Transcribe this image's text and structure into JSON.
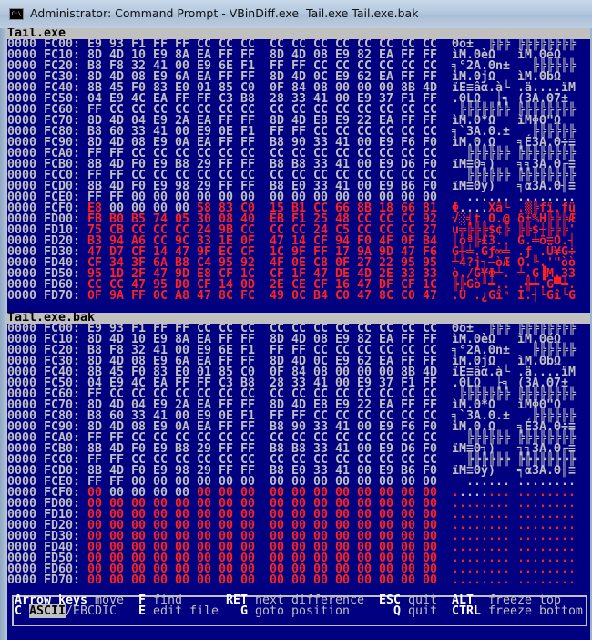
{
  "window": {
    "title": "Administrator: Command Prompt - VBinDiff.exe  Tail.exe Tail.exe.bak",
    "icon": "cmd-icon"
  },
  "colors": {
    "background": "#000080",
    "text": "#c0c0c0",
    "diff": "#ff2020",
    "header": "#c0c0c0"
  },
  "panes": [
    {
      "file": "Tail.exe",
      "rows": [
        {
          "addr": "0000 FC00:",
          "hex": "E9 93 F1 FF FF CC CC CC CC CC CC CC CC CC CC CC",
          "ascii": "Θô±  ╠╠╠╠╠╠╠╠╠╠╠"
        },
        {
          "addr": "0000 FC10:",
          "hex": "8D 4D 10 E9 8A EA FF FF 8D 4D 08 E9 82 EA FF FF",
          "ascii": "ìM.ΘèΩ  ìM.ΘéΩ  "
        },
        {
          "addr": "0000 FC20:",
          "hex": "B8 F8 32 41 00 E9 6E F1 FF FF CC CC CC CC CC CC",
          "ascii": "╕°2A.Θn±  ╠╠╠╠╠╠"
        },
        {
          "addr": "0000 FC30:",
          "hex": "8D 4D 08 E9 6A EA FF FF 8D 4D 0C E9 62 EA FF FF",
          "ascii": "ìM.ΘjΩ  ìM.ΘbΩ  "
        },
        {
          "addr": "0000 FC40:",
          "hex": "8B 45 F0 83 E0 01 85 C0 0F 84 08 00 00 00 8B 4D",
          "ascii": "ïE≡âα.à└.ä....ïM"
        },
        {
          "addr": "0000 FC50:",
          "hex": "04 E9 4C EA FF FF C3 B8 28 33 41 00 E9 37 F1 FF",
          "ascii": ".ΘLΩ  ├╕(3A.Θ7± "
        },
        {
          "addr": "0000 FC60:",
          "hex": "FF CC CC CC CC CC CC CC CC CC CC CC CC CC CC CC",
          "ascii": " ╠╠╠╠╠╠╠╠╠╠╠╠╠╠╠"
        },
        {
          "addr": "0000 FC70:",
          "hex": "8D 4D 04 E9 2A EA FF FF 8D 4D E8 E9 22 EA FF FF",
          "ascii": "ìM.Θ*Ω  ìMΦΘ\"Ω  "
        },
        {
          "addr": "0000 FC80:",
          "hex": "B8 60 33 41 00 E9 0E F1 FF FF CC CC CC CC CC CC",
          "ascii": "╕`3A.Θ.±  ╠╠╠╠╠╠"
        },
        {
          "addr": "0000 FC90:",
          "hex": "8D 4D 08 E9 0A EA FF FF B8 90 33 41 00 E9 F6 F0",
          "ascii": "ìM.Θ.Ω  ╕É3A.Θ÷≡"
        },
        {
          "addr": "0000 FCA0:",
          "hex": "FF FF CC CC CC CC CC CC CC CC CC CC CC CC CC CC",
          "ascii": "  ╠╠╠╠╠╠╠╠╠╠╠╠╠╠"
        },
        {
          "addr": "0000 FCB0:",
          "hex": "8B 4D F0 E9 B8 29 FF FF B8 B8 33 41 00 E9 D6 F0",
          "ascii": "ïM≡Θ╕)  ╕╕3A.Θ╓≡"
        },
        {
          "addr": "0000 FCC0:",
          "hex": "FF FF CC CC CC CC CC CC CC CC CC CC CC CC CC CC",
          "ascii": "  ╠╠╠╠╠╠╠╠╠╠╠╠╠╠"
        },
        {
          "addr": "0000 FCD0:",
          "hex": "8B 4D F0 E9 98 29 FF FF B8 E0 33 41 00 E9 B6 F0",
          "ascii": "ïM≡Θÿ)  ╕α3A.Θ╢≡"
        },
        {
          "addr": "0000 FCE0:",
          "hex": "FF FF 00 00 00 00 00 00 00 00 00 00 00 00 00 00",
          "ascii": "  .............."
        },
        {
          "addr": "0000 FCF0:",
          "hex": "E8 00 00 00 00 58 83 C0 15 B1 CC 66 8B 18 66 81",
          "ascii": "Φ....Xâ└.▒╠fï.fü"
        },
        {
          "addr": "0000 FD00:",
          "hex": "FB B0 B5 74 05 30 08 40 EB F1 25 48 CC CC CC 92",
          "ascii": "√░╡t.0.@δ±%H╠╠╠Æ"
        },
        {
          "addr": "0000 FD10:",
          "hex": "75 CB CC CC CC 24 9B CC CC CC 24 C5 CC CC CC 27",
          "ascii": "u╦╠╠╠$¢╠╠╠$┼╠╠╠'"
        },
        {
          "addr": "0000 FD20:",
          "hex": "B3 94 A6 CC 9C 33 1E 0F 47 14 CF 94 F0 4F 0F B4",
          "ascii": "│öª╠£3..G.╧ö≡O.┤"
        },
        {
          "addr": "0000 FD30:",
          "hex": "47 D7 CF 14 47 9F EC CF 1C 9F FF 17 9A 9D 47 F6",
          "ascii": "G╫╧.Gƒ∞╧.ƒ .Ü¥G÷"
        },
        {
          "addr": "0000 FD40:",
          "hex": "CF 34 3F 6A B8 C4 95 92 4F 0E C8 0F 27 22 95 95",
          "ascii": "╧4?j╕─òÆO.╚.'\"òò"
        },
        {
          "addr": "0000 FD50:",
          "hex": "95 1D 2F 47 9D E8 CF 1C CF 1F 47 DE 4D 2E 33 33",
          "ascii": "ò./G¥Φ╧.╧.G▐M.33"
        },
        {
          "addr": "0000 FD60:",
          "hex": "CC CC 47 95 D0 CF 14 0D 2E CE CF 16 47 DF CF 1C",
          "ascii": "╠╠Gò╨╧...╬╧.G▀╧."
        },
        {
          "addr": "0000 FD70:",
          "hex": "0F 9A FF 0C A8 47 8C FC 49 0C B4 C0 47 8C C0 47",
          "ascii": ".Ü .¿GîⁿI.┤└Gî└G"
        }
      ]
    },
    {
      "file": "Tail.exe.bak",
      "rows": [
        {
          "addr": "0000 FC00:",
          "hex": "E9 93 F1 FF FF CC CC CC CC CC CC CC CC CC CC CC",
          "ascii": "Θô±  ╠╠╠╠╠╠╠╠╠╠╠"
        },
        {
          "addr": "0000 FC10:",
          "hex": "8D 4D 10 E9 8A EA FF FF 8D 4D 08 E9 82 EA FF FF",
          "ascii": "ìM.ΘèΩ  ìM.ΘéΩ  "
        },
        {
          "addr": "0000 FC20:",
          "hex": "B8 F8 32 41 00 E9 6E F1 FF FF CC CC CC CC CC CC",
          "ascii": "╕°2A.Θn±  ╠╠╠╠╠╠"
        },
        {
          "addr": "0000 FC30:",
          "hex": "8D 4D 08 E9 6A EA FF FF 8D 4D 0C E9 62 EA FF FF",
          "ascii": "ìM.ΘjΩ  ìM.ΘbΩ  "
        },
        {
          "addr": "0000 FC40:",
          "hex": "8B 45 F0 83 E0 01 85 C0 0F 84 08 00 00 00 8B 4D",
          "ascii": "ïE≡âα.à└.ä....ïM"
        },
        {
          "addr": "0000 FC50:",
          "hex": "04 E9 4C EA FF FF C3 B8 28 33 41 00 E9 37 F1 FF",
          "ascii": ".ΘLΩ  ├╕(3A.Θ7± "
        },
        {
          "addr": "0000 FC60:",
          "hex": "FF CC CC CC CC CC CC CC CC CC CC CC CC CC CC CC",
          "ascii": " ╠╠╠╠╠╠╠╠╠╠╠╠╠╠╠"
        },
        {
          "addr": "0000 FC70:",
          "hex": "8D 4D 04 E9 2A EA FF FF 8D 4D E8 E9 22 EA FF FF",
          "ascii": "ìM.Θ*Ω  ìMΦΘ\"Ω  "
        },
        {
          "addr": "0000 FC80:",
          "hex": "B8 60 33 41 00 E9 0E F1 FF FF CC CC CC CC CC CC",
          "ascii": "╕`3A.Θ.±  ╠╠╠╠╠╠"
        },
        {
          "addr": "0000 FC90:",
          "hex": "8D 4D 08 E9 0A EA FF FF B8 90 33 41 00 E9 F6 F0",
          "ascii": "ìM.Θ.Ω  ╕É3A.Θ÷≡"
        },
        {
          "addr": "0000 FCA0:",
          "hex": "FF FF CC CC CC CC CC CC CC CC CC CC CC CC CC CC",
          "ascii": "  ╠╠╠╠╠╠╠╠╠╠╠╠╠╠"
        },
        {
          "addr": "0000 FCB0:",
          "hex": "8B 4D F0 E9 B8 29 FF FF B8 B8 33 41 00 E9 D6 F0",
          "ascii": "ïM≡Θ╕)  ╕╕3A.Θ╓≡"
        },
        {
          "addr": "0000 FCC0:",
          "hex": "FF FF CC CC CC CC CC CC CC CC CC CC CC CC CC CC",
          "ascii": "  ╠╠╠╠╠╠╠╠╠╠╠╠╠╠"
        },
        {
          "addr": "0000 FCD0:",
          "hex": "8B 4D F0 E9 98 29 FF FF B8 E0 33 41 00 E9 B6 F0",
          "ascii": "ïM≡Θÿ)  ╕α3A.Θ╢≡"
        },
        {
          "addr": "0000 FCE0:",
          "hex": "FF FF 00 00 00 00 00 00 00 00 00 00 00 00 00 00",
          "ascii": "  .............."
        },
        {
          "addr": "0000 FCF0:",
          "hex": "00 00 00 00 00 00 00 00 00 00 00 00 00 00 00 00",
          "ascii": "................"
        },
        {
          "addr": "0000 FD00:",
          "hex": "00 00 00 00 00 00 00 00 00 00 00 00 00 00 00 00",
          "ascii": "................"
        },
        {
          "addr": "0000 FD10:",
          "hex": "00 00 00 00 00 00 00 00 00 00 00 00 00 00 00 00",
          "ascii": "................"
        },
        {
          "addr": "0000 FD20:",
          "hex": "00 00 00 00 00 00 00 00 00 00 00 00 00 00 00 00",
          "ascii": "................"
        },
        {
          "addr": "0000 FD30:",
          "hex": "00 00 00 00 00 00 00 00 00 00 00 00 00 00 00 00",
          "ascii": "................"
        },
        {
          "addr": "0000 FD40:",
          "hex": "00 00 00 00 00 00 00 00 00 00 00 00 00 00 00 00",
          "ascii": "................"
        },
        {
          "addr": "0000 FD50:",
          "hex": "00 00 00 00 00 00 00 00 00 00 00 00 00 00 00 00",
          "ascii": "................"
        },
        {
          "addr": "0000 FD60:",
          "hex": "00 00 00 00 00 00 00 00 00 00 00 00 00 00 00 00",
          "ascii": "................"
        },
        {
          "addr": "0000 FD70:",
          "hex": "00 00 00 00 00 00 00 00 00 00 00 00 00 00 00 00",
          "ascii": "................"
        }
      ]
    }
  ],
  "help": {
    "line1": [
      {
        "key": "Arrow keys",
        "desc": "move",
        "col": 1
      },
      {
        "key": "F",
        "desc": "find",
        "col": 18
      },
      {
        "key": "RET",
        "desc": "next difference",
        "col": 30
      },
      {
        "key": "ESC",
        "desc": "quit",
        "col": 51
      },
      {
        "key": "ALT ",
        "desc": "freeze top",
        "col": 61
      }
    ],
    "line2": [
      {
        "key": "C",
        "highlight": "ASCII",
        "desc": "/EBCDIC",
        "col": 1
      },
      {
        "key": "E",
        "desc": "edit file",
        "col": 18
      },
      {
        "key": "G",
        "desc": "goto position",
        "col": 32
      },
      {
        "key": "Q",
        "desc": "quit",
        "col": 53
      },
      {
        "key": "CTRL",
        "desc": "freeze bottom",
        "col": 61
      }
    ]
  }
}
